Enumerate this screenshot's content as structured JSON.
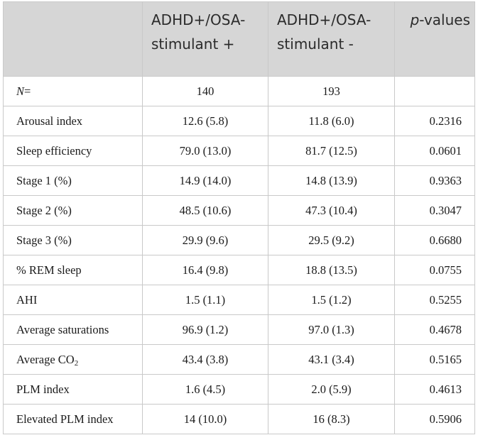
{
  "header": {
    "col2": {
      "line1": "ADHD+/OSA-",
      "line2": "stimulant +"
    },
    "col3": {
      "line1": "ADHD+/OSA-",
      "line2": "stimulant -"
    },
    "col4": {
      "p": "p",
      "rest": "-values"
    }
  },
  "n_row": {
    "label": "N",
    "eq": "=",
    "stim_plus": "140",
    "stim_minus": "193",
    "p": ""
  },
  "rows": [
    {
      "label": "Arousal index",
      "stim_plus": "12.6 (5.8)",
      "stim_minus": "11.8 (6.0)",
      "p": "0.2316"
    },
    {
      "label": "Sleep efficiency",
      "stim_plus": "79.0 (13.0)",
      "stim_minus": "81.7 (12.5)",
      "p": "0.0601"
    },
    {
      "label": "Stage 1 (%)",
      "stim_plus": "14.9 (14.0)",
      "stim_minus": "14.8 (13.9)",
      "p": "0.9363"
    },
    {
      "label": "Stage 2 (%)",
      "stim_plus": "48.5 (10.6)",
      "stim_minus": "47.3 (10.4)",
      "p": "0.3047"
    },
    {
      "label": "Stage 3 (%)",
      "stim_plus": "29.9 (9.6)",
      "stim_minus": "29.5 (9.2)",
      "p": "0.6680"
    },
    {
      "label": "% REM sleep",
      "stim_plus": "16.4 (9.8)",
      "stim_minus": "18.8 (13.5)",
      "p": "0.0755"
    },
    {
      "label": "AHI",
      "stim_plus": "1.5 (1.1)",
      "stim_minus": "1.5 (1.2)",
      "p": "0.5255"
    },
    {
      "label": "Average saturations",
      "stim_plus": "96.9 (1.2)",
      "stim_minus": "97.0 (1.3)",
      "p": "0.4678"
    },
    {
      "label": "Average CO",
      "label_sub": "2",
      "stim_plus": "43.4 (3.8)",
      "stim_minus": "43.1 (3.4)",
      "p": "0.5165"
    },
    {
      "label": "PLM index",
      "stim_plus": "1.6 (4.5)",
      "stim_minus": "2.0 (5.9)",
      "p": "0.4613"
    },
    {
      "label": "Elevated PLM index",
      "stim_plus": "14 (10.0)",
      "stim_minus": "16 (8.3)",
      "p": "0.5906"
    }
  ]
}
